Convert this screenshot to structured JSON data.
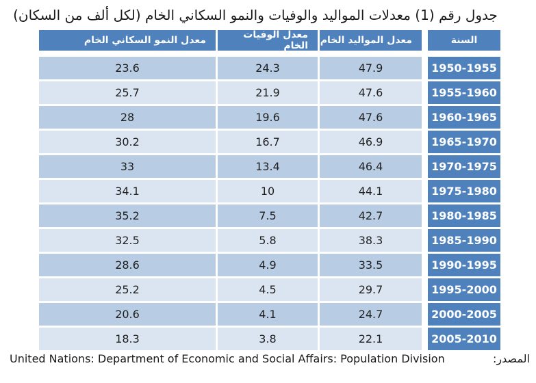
{
  "title": "جدول رقم (1) معدلات المواليد والوفيات والنمو السكاني الخام (لكل ألف من السكان)",
  "headers": {
    "growth": "معدل النمو السكاني الخام",
    "death": "معدل الوفيات الخام",
    "birth": "معدل المواليد الخام",
    "year": "السنة"
  },
  "rows": [
    {
      "period": "1950-1955",
      "birth": "47.9",
      "death": "24.3",
      "growth": "23.6"
    },
    {
      "period": "1955-1960",
      "birth": "47.6",
      "death": "21.9",
      "growth": "25.7"
    },
    {
      "period": "1960-1965",
      "birth": "47.6",
      "death": "19.6",
      "growth": "28"
    },
    {
      "period": "1965-1970",
      "birth": "46.9",
      "death": "16.7",
      "growth": "30.2"
    },
    {
      "period": "1970-1975",
      "birth": "46.4",
      "death": "13.4",
      "growth": "33"
    },
    {
      "period": "1975-1980",
      "birth": "44.1",
      "death": "10",
      "growth": "34.1"
    },
    {
      "period": "1980-1985",
      "birth": "42.7",
      "death": "7.5",
      "growth": "35.2"
    },
    {
      "period": "1985-1990",
      "birth": "38.3",
      "death": "5.8",
      "growth": "32.5"
    },
    {
      "period": "1990-1995",
      "birth": "33.5",
      "death": "4.9",
      "growth": "28.6"
    },
    {
      "period": "1995-2000",
      "birth": "29.7",
      "death": "4.5",
      "growth": "25.2"
    },
    {
      "period": "2000-2005",
      "birth": "24.7",
      "death": "4.1",
      "growth": "20.6"
    },
    {
      "period": "2005-2010",
      "birth": "22.1",
      "death": "3.8",
      "growth": "18.3"
    }
  ],
  "source": {
    "label": "المصدر:",
    "text": "United Nations: Department of Economic and Social Affairs: Population Division"
  },
  "colors": {
    "header_bg": "#4f81bd",
    "row_dark": "#b8cce4",
    "row_light": "#dbe5f1"
  }
}
